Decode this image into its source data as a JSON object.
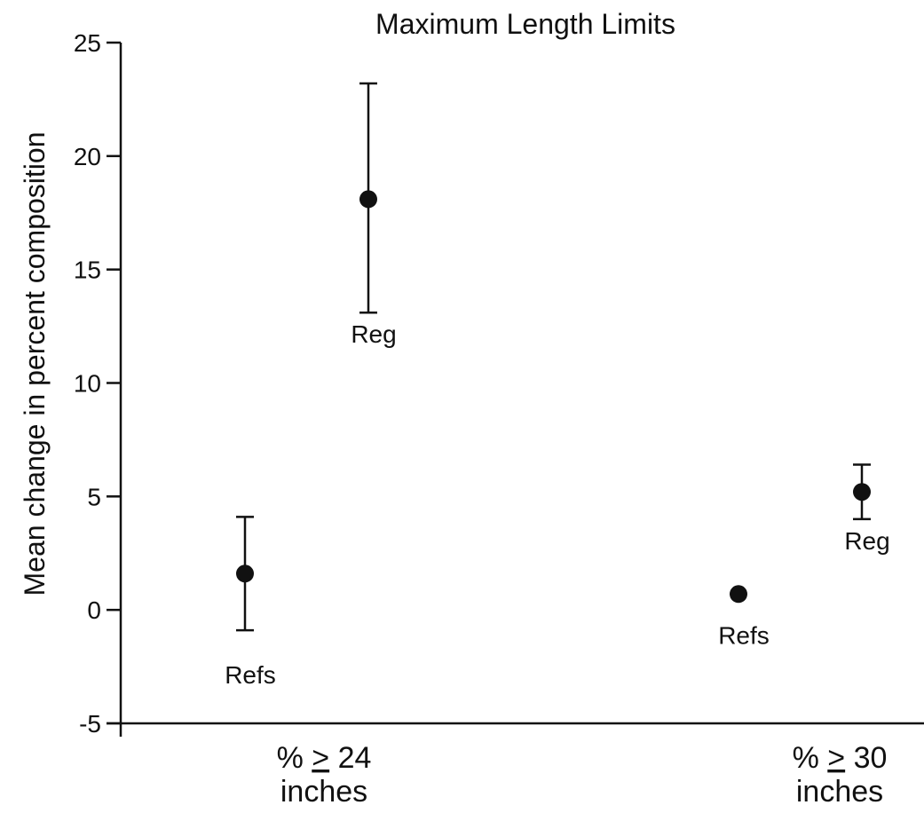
{
  "chart_data": {
    "type": "scatter",
    "title": "Maximum Length Limits",
    "ylabel": "Mean change in percent composition",
    "xlabel": "",
    "ylim": [
      -5,
      25
    ],
    "yticks": [
      25,
      20,
      15,
      10,
      5,
      0,
      -5
    ],
    "grid": false,
    "groups": [
      {
        "label_line1_prefix": "% ",
        "label_line1_symbol": ">",
        "label_line1_suffix": " 24",
        "label_line2": "inches",
        "points": [
          {
            "label": "Refs",
            "y": 1.6,
            "err_low": -0.9,
            "err_high": 4.1
          },
          {
            "label": "Reg",
            "y": 18.1,
            "err_low": 13.1,
            "err_high": 23.2
          }
        ]
      },
      {
        "label_line1_prefix": "% ",
        "label_line1_symbol": ">",
        "label_line1_suffix": " 30",
        "label_line2": "inches",
        "points": [
          {
            "label": "Refs",
            "y": 0.7
          },
          {
            "label": "Reg",
            "y": 5.2,
            "err_low": 4.0,
            "err_high": 6.4
          }
        ]
      }
    ]
  }
}
